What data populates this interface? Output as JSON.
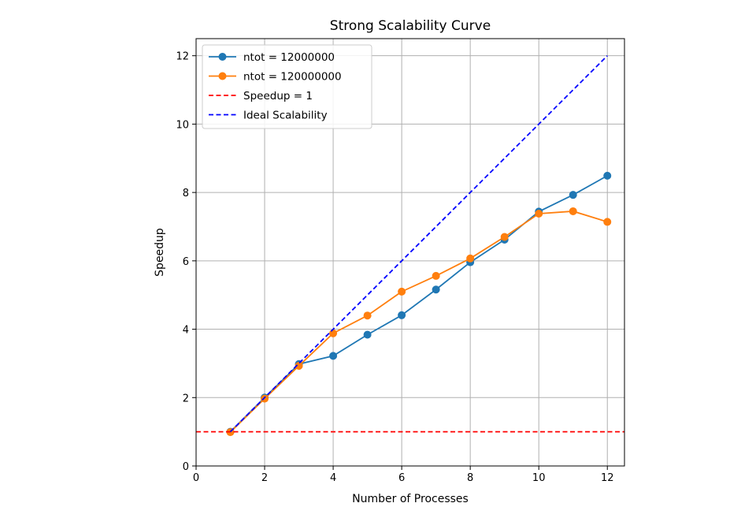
{
  "chart_data": {
    "type": "line",
    "title": "Strong Scalability Curve",
    "xlabel": "Number of Processes",
    "ylabel": "Speedup",
    "xlim": [
      0,
      12.5
    ],
    "ylim": [
      0,
      12.5
    ],
    "xticks": [
      0,
      2,
      4,
      6,
      8,
      10,
      12
    ],
    "yticks": [
      0,
      2,
      4,
      6,
      8,
      10,
      12
    ],
    "grid": true,
    "legend_position": "top-left",
    "series": [
      {
        "name": "ntot = 12000000",
        "style": "solid-marker",
        "color": "#1f77b4",
        "x": [
          1,
          2,
          3,
          4,
          5,
          6,
          7,
          8,
          9,
          10,
          11,
          12
        ],
        "y": [
          1.0,
          2.0,
          2.98,
          3.22,
          3.84,
          4.41,
          5.16,
          5.96,
          6.62,
          7.44,
          7.93,
          8.49
        ]
      },
      {
        "name": "ntot = 120000000",
        "style": "solid-marker",
        "color": "#ff7f0e",
        "x": [
          1,
          2,
          3,
          4,
          5,
          6,
          7,
          8,
          9,
          10,
          11,
          12
        ],
        "y": [
          0.99,
          1.97,
          2.93,
          3.88,
          4.4,
          5.1,
          5.56,
          6.07,
          6.7,
          7.38,
          7.45,
          7.14
        ]
      },
      {
        "name": "Speedup = 1",
        "style": "dashed",
        "color": "#ff0000",
        "x": [
          0,
          12.5
        ],
        "y": [
          1,
          1
        ]
      },
      {
        "name": "Ideal Scalability",
        "style": "dashed",
        "color": "#0000ff",
        "x": [
          1,
          12
        ],
        "y": [
          1,
          12
        ]
      }
    ]
  }
}
